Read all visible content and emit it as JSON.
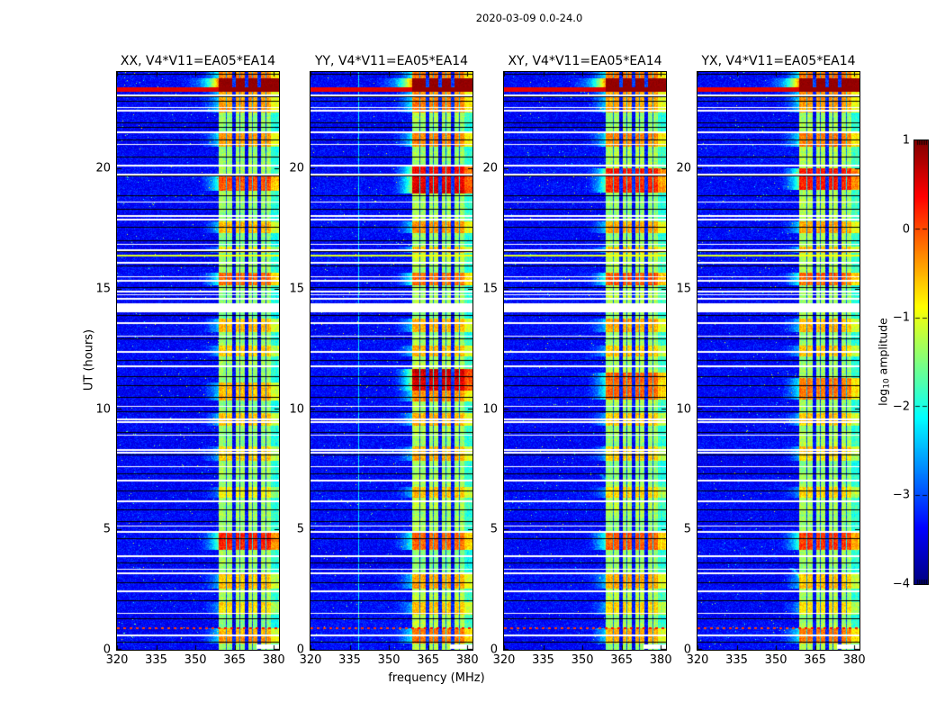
{
  "figure": {
    "title": "2020-03-09 0.0-24.0",
    "background": "#ffffff"
  },
  "axes": {
    "xlabel": "frequency (MHz)",
    "ylabel": "UT (hours)",
    "x_ticks": [
      320,
      335,
      350,
      365,
      380
    ],
    "x_tick_labels": [
      "320",
      "335",
      "350",
      "365",
      "380"
    ],
    "y_ticks": [
      0,
      5,
      10,
      15,
      20
    ],
    "y_tick_labels": [
      "0",
      "5",
      "10",
      "15",
      "20"
    ]
  },
  "colorbar": {
    "label_log": "log",
    "label_sub": "10",
    "label_rest": " amplitude",
    "ticks": [
      1,
      0,
      -1,
      -2,
      -3,
      -4
    ],
    "tick_labels": [
      "1",
      "0",
      "−1",
      "−2",
      "−3",
      "−4"
    ],
    "vmin": -4,
    "vmax": 1,
    "colormap": "jet"
  },
  "chart_data": {
    "type": "heatmap",
    "title": "2020-03-09 0.0-24.0",
    "x_range": [
      320,
      382
    ],
    "y_range": [
      0,
      24
    ],
    "vmin": -4,
    "vmax": 1,
    "colormap": "jet",
    "background_level": -3.5,
    "band": {
      "start_mhz": 358.8,
      "base_level": -1.35,
      "lanes_mhz": [
        [
          364.0,
          365.3
        ],
        [
          368.9,
          370.2
        ],
        [
          373.8,
          375.1
        ]
      ],
      "thin_lines_mhz": [
        361.9,
        366.9,
        371.9,
        376.9
      ],
      "right_dim_mhz": 378.8,
      "right_dim_level": -1.9
    },
    "white_gap_hours": [
      14.05,
      14.38
    ],
    "red_line_hours": [
      23.22,
      23.38
    ],
    "top_block_hours": [
      23.38,
      23.72
    ],
    "yellow_line_hour": 16.42,
    "dotted_red_line_hour": 0.95,
    "bottom_right_white": {
      "t": [
        0.04,
        0.22
      ],
      "f_min": 373.5
    },
    "white_lines_hours": [
      23.05,
      22.55,
      22.42,
      21.55,
      21.02,
      20.15,
      19.78,
      18.62,
      18.05,
      17.92,
      16.85,
      16.62,
      16.1,
      15.52,
      15.35,
      14.92,
      14.78,
      14.6,
      13.62,
      13.05,
      12.42,
      11.82,
      10.12,
      9.62,
      9.48,
      8.92,
      8.35,
      8.22,
      7.62,
      7.05,
      6.22,
      5.15,
      4.92,
      3.92,
      3.35,
      3.22,
      2.45,
      1.52,
      0.62
    ],
    "black_lines_hours": [
      23.92,
      23.0,
      22.82,
      22.38,
      21.92,
      21.72,
      21.18,
      20.5,
      19.7,
      18.88,
      18.3,
      17.58,
      17.02,
      16.55,
      15.95,
      15.05,
      13.92,
      12.92,
      12.02,
      11.35,
      10.98,
      10.52,
      9.92,
      9.05,
      8.12,
      7.32,
      6.62,
      5.85,
      5.35,
      4.62,
      3.62,
      2.82,
      2.05,
      1.32,
      0.88,
      0.35
    ],
    "panels": [
      {
        "title": "XX, V4*V11=EA05*EA14",
        "seed": 11,
        "patches": [
          [
            23.72,
            24,
            1.1
          ],
          [
            23.38,
            23.72,
            2.6
          ],
          [
            22.3,
            23.2,
            0.9
          ],
          [
            20.9,
            21.45,
            1.0
          ],
          [
            19.05,
            19.65,
            1.35
          ],
          [
            17.3,
            17.8,
            0.85
          ],
          [
            16.5,
            16.75,
            0.7
          ],
          [
            15.15,
            15.65,
            1.25
          ],
          [
            13.2,
            13.75,
            0.85
          ],
          [
            12.2,
            12.65,
            0.7
          ],
          [
            10.35,
            11.1,
            0.95
          ],
          [
            9.3,
            9.85,
            0.8
          ],
          [
            7.85,
            8.45,
            0.7
          ],
          [
            6.3,
            6.75,
            0.55
          ],
          [
            4.15,
            4.95,
            1.5
          ],
          [
            2.55,
            3.2,
            0.75
          ],
          [
            1.45,
            2.0,
            0.6
          ],
          [
            0.25,
            0.9,
            0.95
          ]
        ]
      },
      {
        "title": "YY, V4*V11=EA05*EA14",
        "seed": 22,
        "vline_mhz": 338.3,
        "patches": [
          [
            23.72,
            24,
            1.2
          ],
          [
            23.38,
            23.72,
            2.6
          ],
          [
            22.3,
            23.2,
            1.0
          ],
          [
            20.9,
            21.45,
            1.1
          ],
          [
            18.95,
            20.1,
            1.8
          ],
          [
            17.3,
            17.8,
            0.95
          ],
          [
            16.5,
            16.75,
            0.8
          ],
          [
            15.15,
            15.65,
            1.3
          ],
          [
            13.2,
            13.75,
            0.9
          ],
          [
            12.2,
            12.65,
            0.8
          ],
          [
            10.75,
            11.65,
            1.9
          ],
          [
            10.3,
            10.75,
            1.0
          ],
          [
            9.3,
            9.85,
            0.85
          ],
          [
            7.85,
            8.45,
            0.8
          ],
          [
            6.3,
            6.75,
            0.7
          ],
          [
            4.15,
            4.95,
            1.3
          ],
          [
            2.55,
            3.2,
            0.9
          ],
          [
            1.45,
            2.0,
            0.7
          ],
          [
            0.25,
            0.9,
            1.0
          ]
        ]
      },
      {
        "title": "XY, V4*V11=EA05*EA14",
        "seed": 33,
        "diag": [
          {
            "f0": 357,
            "t0": 7.3,
            "f1": 380,
            "t1": 4.7,
            "boost": 0.8
          }
        ],
        "patches": [
          [
            23.72,
            24,
            1.1
          ],
          [
            23.38,
            23.72,
            2.5
          ],
          [
            22.3,
            23.2,
            0.9
          ],
          [
            20.9,
            21.45,
            1.0
          ],
          [
            19.0,
            20.0,
            1.5
          ],
          [
            17.3,
            17.8,
            0.9
          ],
          [
            16.5,
            16.75,
            0.7
          ],
          [
            15.15,
            15.65,
            1.2
          ],
          [
            13.2,
            13.75,
            0.85
          ],
          [
            12.2,
            12.65,
            0.7
          ],
          [
            10.4,
            11.5,
            1.2
          ],
          [
            9.3,
            9.85,
            0.8
          ],
          [
            7.85,
            8.45,
            0.75
          ],
          [
            6.3,
            6.75,
            0.6
          ],
          [
            4.15,
            4.95,
            1.3
          ],
          [
            2.55,
            3.2,
            0.8
          ],
          [
            1.45,
            2.0,
            0.65
          ],
          [
            0.25,
            0.9,
            0.95
          ]
        ]
      },
      {
        "title": "YX, V4*V11=EA05*EA14",
        "seed": 44,
        "diag": [
          {
            "f0": 356,
            "t0": 3.4,
            "f1": 381,
            "t1": 0.8,
            "boost": 1.1
          }
        ],
        "patches": [
          [
            23.72,
            24,
            1.15
          ],
          [
            23.38,
            23.72,
            2.6
          ],
          [
            22.3,
            23.2,
            0.95
          ],
          [
            20.9,
            21.45,
            1.05
          ],
          [
            19.1,
            20.0,
            1.6
          ],
          [
            17.3,
            17.8,
            0.9
          ],
          [
            16.5,
            16.75,
            0.75
          ],
          [
            15.15,
            15.65,
            1.25
          ],
          [
            13.2,
            13.75,
            0.85
          ],
          [
            12.2,
            12.65,
            0.75
          ],
          [
            10.4,
            11.3,
            1.1
          ],
          [
            9.3,
            9.85,
            0.8
          ],
          [
            7.85,
            8.45,
            0.75
          ],
          [
            6.3,
            6.75,
            0.6
          ],
          [
            4.15,
            4.95,
            1.35
          ],
          [
            2.55,
            3.2,
            0.85
          ],
          [
            1.45,
            2.0,
            0.65
          ],
          [
            0.25,
            0.9,
            1.0
          ]
        ]
      }
    ]
  }
}
